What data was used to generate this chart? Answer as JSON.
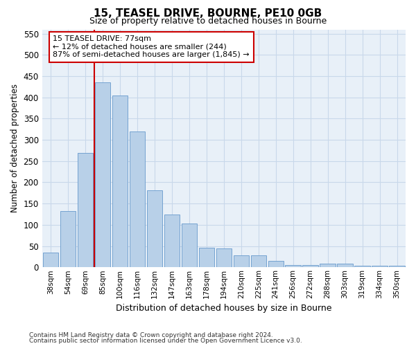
{
  "title1": "15, TEASEL DRIVE, BOURNE, PE10 0GB",
  "title2": "Size of property relative to detached houses in Bourne",
  "xlabel": "Distribution of detached houses by size in Bourne",
  "ylabel": "Number of detached properties",
  "categories": [
    "38sqm",
    "54sqm",
    "69sqm",
    "85sqm",
    "100sqm",
    "116sqm",
    "132sqm",
    "147sqm",
    "163sqm",
    "178sqm",
    "194sqm",
    "210sqm",
    "225sqm",
    "241sqm",
    "256sqm",
    "272sqm",
    "288sqm",
    "303sqm",
    "319sqm",
    "334sqm",
    "350sqm"
  ],
  "values": [
    35,
    133,
    270,
    435,
    405,
    320,
    182,
    125,
    103,
    46,
    45,
    28,
    28,
    15,
    6,
    5,
    9,
    8,
    4,
    4,
    4
  ],
  "bar_color": "#b8d0e8",
  "bar_edge_color": "#6699cc",
  "grid_color": "#c8d8ea",
  "bg_color": "#e8f0f8",
  "vline_color": "#cc0000",
  "vline_x": 2.5,
  "annotation_text": "15 TEASEL DRIVE: 77sqm\n← 12% of detached houses are smaller (244)\n87% of semi-detached houses are larger (1,845) →",
  "annotation_box_color": "#ffffff",
  "annotation_box_edge": "#cc0000",
  "ylim": [
    0,
    560
  ],
  "yticks": [
    0,
    50,
    100,
    150,
    200,
    250,
    300,
    350,
    400,
    450,
    500,
    550
  ],
  "footer1": "Contains HM Land Registry data © Crown copyright and database right 2024.",
  "footer2": "Contains public sector information licensed under the Open Government Licence v3.0."
}
